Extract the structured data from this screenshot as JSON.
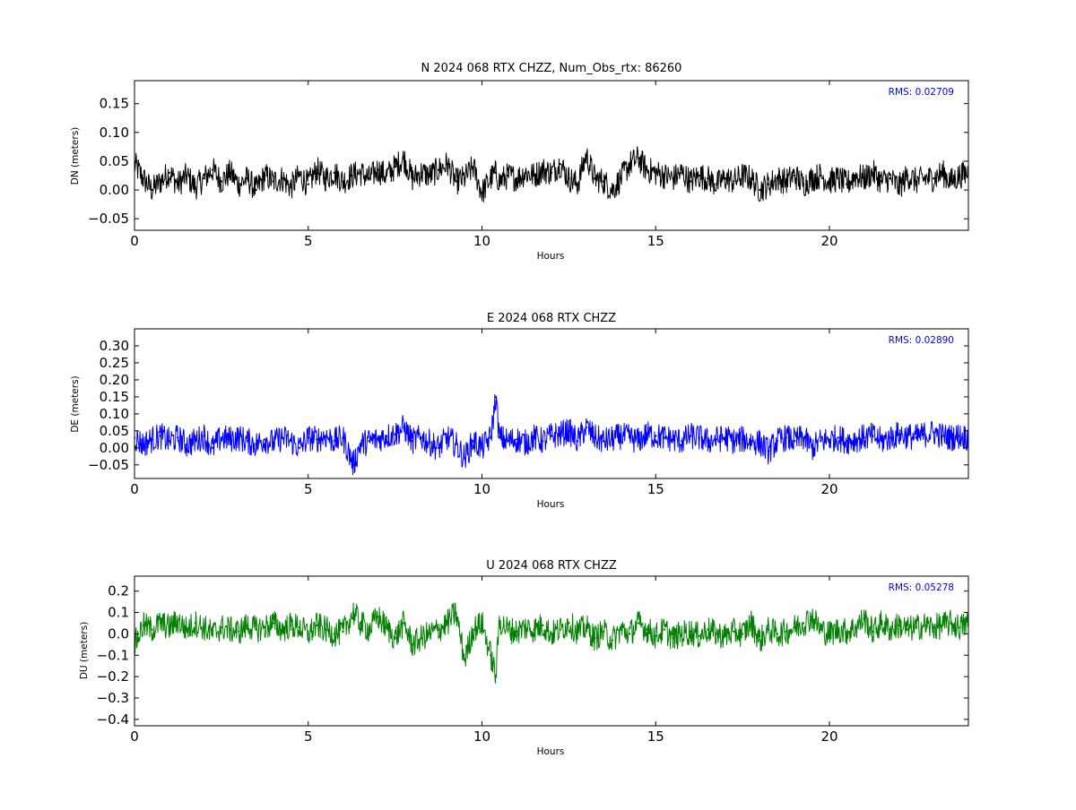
{
  "chart_data": [
    {
      "type": "line",
      "title": "N 2024 068 RTX  CHZZ, Num_Obs_rtx: 86260",
      "xlabel": "Hours",
      "ylabel": "DN (meters)",
      "xlim": [
        0,
        24
      ],
      "ylim": [
        -0.07,
        0.19
      ],
      "xticks": [
        0,
        5,
        10,
        15,
        20
      ],
      "yticks": [
        -0.05,
        0.0,
        0.05,
        0.1,
        0.15
      ],
      "ytick_labels": [
        "−0.05",
        "0.00",
        "0.05",
        "0.10",
        "0.15"
      ],
      "grid": false,
      "color": "#000000",
      "annotation": "RMS:  0.02709",
      "annotation_color": "#0000ff",
      "series": [
        {
          "x": [
            0,
            0.25,
            0.5,
            0.75,
            1.0,
            1.25,
            1.5,
            1.75,
            2.0,
            2.25,
            2.5,
            2.75,
            3.0,
            3.25,
            3.5,
            3.75,
            4.0,
            4.25,
            4.5,
            4.75,
            5.0,
            5.25,
            5.5,
            5.75,
            6.0,
            6.25,
            6.5,
            6.75,
            7.0,
            7.25,
            7.5,
            7.75,
            8.0,
            8.25,
            8.5,
            8.75,
            9.0,
            9.25,
            9.5,
            9.75,
            10.0,
            10.25,
            10.4,
            10.5,
            10.75,
            11.0,
            11.25,
            11.5,
            11.75,
            12.0,
            12.25,
            12.5,
            12.75,
            13.0,
            13.25,
            13.5,
            13.75,
            14.0,
            14.25,
            14.5,
            14.75,
            15.0,
            15.25,
            15.5,
            15.75,
            16.0,
            16.25,
            16.5,
            16.75,
            17.0,
            17.25,
            17.5,
            17.75,
            18.0,
            18.25,
            18.5,
            18.75,
            19.0,
            19.25,
            19.5,
            19.75,
            20.0,
            20.25,
            20.5,
            20.75,
            21.0,
            21.25,
            21.5,
            21.75,
            22.0,
            22.25,
            22.5,
            22.75,
            23.0,
            23.25,
            23.5,
            23.75,
            24.0
          ],
          "y": [
            0.045,
            0.02,
            0.0,
            0.015,
            0.03,
            0.01,
            0.025,
            0.005,
            0.02,
            0.035,
            0.015,
            0.03,
            0.01,
            0.02,
            0.0,
            0.025,
            0.015,
            0.02,
            0.005,
            0.025,
            0.01,
            0.035,
            0.02,
            0.03,
            0.015,
            0.025,
            0.03,
            0.02,
            0.035,
            0.025,
            0.04,
            0.055,
            0.02,
            0.03,
            0.025,
            0.035,
            0.045,
            0.015,
            0.02,
            0.04,
            -0.005,
            0.02,
            0.03,
            0.015,
            0.025,
            0.02,
            0.03,
            0.025,
            0.035,
            0.03,
            0.045,
            0.02,
            0.01,
            0.06,
            0.02,
            0.015,
            0.0,
            0.02,
            0.045,
            0.055,
            0.035,
            0.03,
            0.025,
            0.02,
            0.03,
            0.015,
            0.025,
            0.02,
            0.01,
            0.02,
            0.015,
            0.025,
            0.02,
            0.0,
            0.01,
            0.02,
            0.015,
            0.025,
            0.01,
            0.02,
            0.025,
            0.015,
            0.02,
            0.01,
            0.025,
            0.02,
            0.03,
            0.015,
            0.02,
            0.005,
            0.025,
            0.015,
            0.02,
            0.02,
            0.03,
            0.015,
            0.025,
            0.03
          ]
        }
      ]
    },
    {
      "type": "line",
      "title": "E 2024 068 RTX  CHZZ",
      "xlabel": "Hours",
      "ylabel": "DE (meters)",
      "xlim": [
        0,
        24
      ],
      "ylim": [
        -0.09,
        0.35
      ],
      "xticks": [
        0,
        5,
        10,
        15,
        20
      ],
      "yticks": [
        -0.05,
        0.0,
        0.05,
        0.1,
        0.15,
        0.2,
        0.25,
        0.3
      ],
      "ytick_labels": [
        "−0.05",
        "0.00",
        "0.05",
        "0.10",
        "0.15",
        "0.20",
        "0.25",
        "0.30"
      ],
      "grid": false,
      "color": "#0000ff",
      "annotation": "RMS:  0.02890",
      "annotation_color": "#0000ff",
      "series": [
        {
          "x": [
            0,
            0.25,
            0.5,
            0.75,
            1.0,
            1.25,
            1.5,
            1.75,
            2.0,
            2.25,
            2.5,
            2.75,
            3.0,
            3.25,
            3.5,
            3.75,
            4.0,
            4.25,
            4.5,
            4.75,
            5.0,
            5.25,
            5.5,
            5.75,
            6.0,
            6.3,
            6.5,
            6.75,
            7.0,
            7.25,
            7.5,
            7.75,
            8.0,
            8.25,
            8.5,
            8.75,
            9.0,
            9.25,
            9.5,
            9.75,
            10.0,
            10.25,
            10.4,
            10.5,
            10.75,
            11.0,
            11.25,
            11.5,
            11.75,
            12.0,
            12.25,
            12.5,
            12.75,
            13.0,
            13.25,
            13.5,
            13.75,
            14.0,
            14.25,
            14.5,
            14.75,
            15.0,
            15.25,
            15.5,
            15.75,
            16.0,
            16.25,
            16.5,
            16.75,
            17.0,
            17.25,
            17.5,
            17.75,
            18.0,
            18.25,
            18.5,
            18.75,
            19.0,
            19.25,
            19.5,
            19.75,
            20.0,
            20.25,
            20.5,
            20.75,
            21.0,
            21.25,
            21.5,
            21.75,
            22.0,
            22.25,
            22.5,
            22.75,
            23.0,
            23.25,
            23.5,
            23.75,
            24.0
          ],
          "y": [
            0.03,
            0.01,
            0.025,
            0.035,
            0.02,
            0.03,
            0.01,
            0.02,
            0.035,
            0.0,
            0.03,
            0.025,
            0.03,
            0.02,
            0.01,
            0.025,
            0.015,
            0.03,
            0.02,
            0.0,
            0.03,
            0.025,
            0.035,
            0.02,
            0.03,
            -0.05,
            0.01,
            0.02,
            0.025,
            0.035,
            0.04,
            0.06,
            0.02,
            0.03,
            0.015,
            0.0,
            0.03,
            0.01,
            -0.03,
            0.02,
            0.0,
            0.03,
            0.15,
            0.03,
            0.02,
            0.025,
            0.015,
            0.03,
            0.02,
            0.035,
            0.04,
            0.05,
            0.02,
            0.06,
            0.03,
            0.02,
            0.025,
            0.035,
            0.03,
            0.02,
            0.04,
            0.035,
            0.03,
            0.025,
            0.02,
            0.035,
            0.03,
            0.02,
            0.025,
            0.03,
            0.02,
            0.025,
            0.02,
            0.015,
            -0.01,
            0.02,
            0.03,
            0.02,
            0.03,
            0.0,
            0.02,
            0.025,
            0.03,
            0.02,
            0.025,
            0.03,
            0.035,
            0.02,
            0.03,
            0.04,
            0.035,
            0.03,
            0.04,
            0.045,
            0.035,
            0.03,
            0.035,
            0.03
          ]
        }
      ]
    },
    {
      "type": "line",
      "title": "U 2024 068 RTX  CHZZ",
      "xlabel": "Hours",
      "ylabel": "DU (meters)",
      "xlim": [
        0,
        24
      ],
      "ylim": [
        -0.43,
        0.27
      ],
      "xticks": [
        0,
        5,
        10,
        15,
        20
      ],
      "yticks": [
        -0.4,
        -0.3,
        -0.2,
        -0.1,
        0.0,
        0.1,
        0.2
      ],
      "ytick_labels": [
        "−0.4",
        "−0.3",
        "−0.2",
        "−0.1",
        "0.0",
        "0.1",
        "0.2"
      ],
      "grid": false,
      "color": "#008000",
      "annotation": "RMS:  0.05278",
      "annotation_color": "#0000ff",
      "series": [
        {
          "x": [
            0,
            0.25,
            0.5,
            0.75,
            1.0,
            1.25,
            1.5,
            1.75,
            2.0,
            2.25,
            2.5,
            2.75,
            3.0,
            3.25,
            3.5,
            3.75,
            4.0,
            4.25,
            4.5,
            4.75,
            5.0,
            5.25,
            5.5,
            5.75,
            6.0,
            6.3,
            6.5,
            6.75,
            7.0,
            7.25,
            7.5,
            7.75,
            8.0,
            8.25,
            8.5,
            8.75,
            9.0,
            9.25,
            9.5,
            9.75,
            10.0,
            10.25,
            10.4,
            10.5,
            10.75,
            11.0,
            11.25,
            11.5,
            11.75,
            12.0,
            12.25,
            12.5,
            12.75,
            13.0,
            13.25,
            13.5,
            13.75,
            14.0,
            14.25,
            14.5,
            14.75,
            15.0,
            15.25,
            15.5,
            15.75,
            16.0,
            16.25,
            16.5,
            16.75,
            17.0,
            17.25,
            17.5,
            17.75,
            18.0,
            18.25,
            18.5,
            18.75,
            19.0,
            19.25,
            19.5,
            19.75,
            20.0,
            20.25,
            20.5,
            20.75,
            21.0,
            21.25,
            21.5,
            21.75,
            22.0,
            22.25,
            22.5,
            22.75,
            23.0,
            23.25,
            23.5,
            23.75,
            24.0
          ],
          "y": [
            -0.05,
            0.04,
            0.02,
            0.05,
            0.03,
            0.06,
            0.02,
            0.05,
            0.03,
            0.0,
            0.03,
            0.02,
            0.01,
            0.04,
            0.02,
            0.03,
            0.05,
            0.02,
            0.04,
            0.03,
            0.0,
            0.04,
            0.02,
            0.0,
            0.01,
            0.1,
            0.05,
            0.02,
            0.08,
            0.03,
            -0.02,
            0.05,
            -0.05,
            -0.02,
            0.0,
            0.02,
            0.05,
            0.1,
            -0.12,
            0.02,
            0.05,
            -0.1,
            -0.2,
            0.06,
            0.02,
            0.01,
            0.03,
            0.02,
            0.04,
            0.0,
            0.02,
            0.05,
            0.01,
            0.03,
            -0.02,
            0.01,
            -0.03,
            0.02,
            0.0,
            0.05,
            0.02,
            -0.01,
            0.02,
            -0.02,
            0.0,
            0.01,
            -0.01,
            0.02,
            0.0,
            -0.01,
            0.01,
            0.0,
            0.05,
            -0.03,
            0.02,
            0.0,
            0.01,
            0.03,
            0.05,
            0.08,
            0.02,
            0.0,
            0.02,
            0.01,
            0.03,
            0.07,
            0.01,
            0.05,
            0.02,
            0.04,
            0.02,
            0.03,
            0.04,
            0.03,
            0.04,
            0.05,
            0.03,
            0.05
          ]
        }
      ]
    }
  ]
}
